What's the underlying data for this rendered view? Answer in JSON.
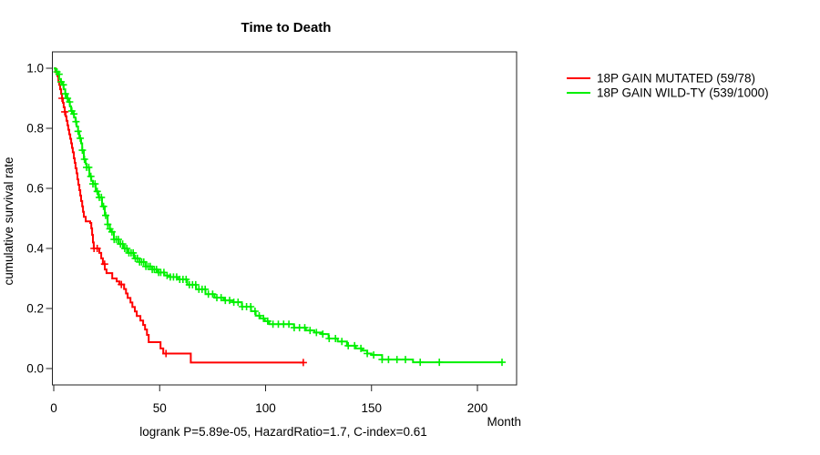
{
  "chart_data": {
    "type": "line",
    "subtype": "kaplan-meier-step",
    "title": "Time to Death",
    "xlabel": "Month",
    "ylabel": "cumulative survival rate",
    "annotation": "logrank P=5.89e-05, HazardRatio=1.7, C-index=0.61",
    "xlim": [
      0,
      220
    ],
    "ylim": [
      0,
      1
    ],
    "xticks": [
      0,
      50,
      100,
      150,
      200
    ],
    "ytick_labels": [
      "0.0",
      "0.2",
      "0.4",
      "0.6",
      "0.8",
      "1.0"
    ],
    "grid": false,
    "legend_position": "right-outside",
    "frame_color": "#222222",
    "series": [
      {
        "name": "18P GAIN MUTATED (59/78)",
        "color": "#ff0000",
        "points": [
          [
            0,
            1.0
          ],
          [
            0.9,
            0.987
          ],
          [
            1.7,
            0.974
          ],
          [
            2.2,
            0.955
          ],
          [
            2.6,
            0.945
          ],
          [
            3,
            0.93
          ],
          [
            3.5,
            0.915
          ],
          [
            3.9,
            0.9
          ],
          [
            4.3,
            0.885
          ],
          [
            4.7,
            0.87
          ],
          [
            5.2,
            0.855
          ],
          [
            5.6,
            0.84
          ],
          [
            6,
            0.825
          ],
          [
            6.5,
            0.81
          ],
          [
            6.9,
            0.795
          ],
          [
            7.3,
            0.78
          ],
          [
            7.8,
            0.765
          ],
          [
            8.2,
            0.75
          ],
          [
            8.6,
            0.735
          ],
          [
            9,
            0.72
          ],
          [
            9.5,
            0.7
          ],
          [
            9.9,
            0.685
          ],
          [
            10.3,
            0.667
          ],
          [
            10.8,
            0.65
          ],
          [
            11.2,
            0.63
          ],
          [
            11.6,
            0.612
          ],
          [
            12.1,
            0.594
          ],
          [
            12.5,
            0.576
          ],
          [
            12.9,
            0.558
          ],
          [
            13.4,
            0.54
          ],
          [
            13.8,
            0.522
          ],
          [
            14.2,
            0.505
          ],
          [
            15.1,
            0.49
          ],
          [
            17.2,
            0.485
          ],
          [
            17.7,
            0.467
          ],
          [
            18.1,
            0.445
          ],
          [
            18.5,
            0.42
          ],
          [
            18.9,
            0.4
          ],
          [
            21.5,
            0.385
          ],
          [
            22.4,
            0.367
          ],
          [
            23.2,
            0.348
          ],
          [
            24.1,
            0.33
          ],
          [
            24.9,
            0.318
          ],
          [
            27.6,
            0.3
          ],
          [
            29.7,
            0.29
          ],
          [
            31,
            0.28
          ],
          [
            33.2,
            0.265
          ],
          [
            34.1,
            0.25
          ],
          [
            34.9,
            0.235
          ],
          [
            36.2,
            0.22
          ],
          [
            37.1,
            0.205
          ],
          [
            38.3,
            0.19
          ],
          [
            39.2,
            0.175
          ],
          [
            40.9,
            0.16
          ],
          [
            42.2,
            0.145
          ],
          [
            43.1,
            0.13
          ],
          [
            44,
            0.112
          ],
          [
            44.8,
            0.088
          ],
          [
            50.4,
            0.067
          ],
          [
            51.7,
            0.05
          ],
          [
            64.7,
            0.02
          ],
          [
            117.8,
            0.02
          ]
        ],
        "censor_months": [
          3.9,
          5.2,
          19,
          20.5,
          24,
          31.9,
          53,
          117.8
        ]
      },
      {
        "name": "18P GAIN WILD-TY (539/1000)",
        "color": "#00f000",
        "points": [
          [
            0,
            1.0
          ],
          [
            0.7,
            0.995
          ],
          [
            1.4,
            0.988
          ],
          [
            2,
            0.98
          ],
          [
            2.6,
            0.964
          ],
          [
            3.3,
            0.955
          ],
          [
            4,
            0.945
          ],
          [
            4.7,
            0.93
          ],
          [
            5.4,
            0.915
          ],
          [
            6,
            0.9
          ],
          [
            6.9,
            0.888
          ],
          [
            7.6,
            0.873
          ],
          [
            8.2,
            0.858
          ],
          [
            9,
            0.848
          ],
          [
            9.6,
            0.836
          ],
          [
            10.3,
            0.822
          ],
          [
            10.8,
            0.806
          ],
          [
            11.5,
            0.79
          ],
          [
            12.1,
            0.767
          ],
          [
            12.9,
            0.75
          ],
          [
            13.4,
            0.727
          ],
          [
            14.2,
            0.697
          ],
          [
            15,
            0.682
          ],
          [
            15.5,
            0.67
          ],
          [
            16.8,
            0.64
          ],
          [
            17.7,
            0.625
          ],
          [
            18.5,
            0.615
          ],
          [
            19.8,
            0.59
          ],
          [
            21.1,
            0.57
          ],
          [
            22.8,
            0.54
          ],
          [
            24.1,
            0.51
          ],
          [
            25.4,
            0.48
          ],
          [
            26.5,
            0.465
          ],
          [
            27.2,
            0.455
          ],
          [
            28.4,
            0.43
          ],
          [
            30.6,
            0.415
          ],
          [
            32.8,
            0.4
          ],
          [
            34.9,
            0.385
          ],
          [
            37.9,
            0.367
          ],
          [
            40.5,
            0.355
          ],
          [
            43.5,
            0.34
          ],
          [
            46.5,
            0.33
          ],
          [
            49,
            0.32
          ],
          [
            52.2,
            0.31
          ],
          [
            55,
            0.305
          ],
          [
            58.6,
            0.297
          ],
          [
            63,
            0.279
          ],
          [
            67.2,
            0.264
          ],
          [
            71.6,
            0.248
          ],
          [
            75.9,
            0.236
          ],
          [
            80.2,
            0.227
          ],
          [
            84.5,
            0.221
          ],
          [
            88.8,
            0.206
          ],
          [
            93.1,
            0.191
          ],
          [
            95.3,
            0.176
          ],
          [
            97.4,
            0.167
          ],
          [
            99.6,
            0.158
          ],
          [
            101.7,
            0.148
          ],
          [
            113.4,
            0.136
          ],
          [
            119,
            0.127
          ],
          [
            123,
            0.12
          ],
          [
            126.3,
            0.115
          ],
          [
            129.7,
            0.1
          ],
          [
            134,
            0.09
          ],
          [
            138.4,
            0.076
          ],
          [
            142.6,
            0.067
          ],
          [
            145.7,
            0.06
          ],
          [
            148,
            0.05
          ],
          [
            150,
            0.045
          ],
          [
            155,
            0.03
          ],
          [
            169.6,
            0.021
          ],
          [
            211.6,
            0.021
          ]
        ],
        "censor_months": [
          1.5,
          2.5,
          3.5,
          4.5,
          5.5,
          6.5,
          7.5,
          8.5,
          9.5,
          10.5,
          11.5,
          12.5,
          13.5,
          14.5,
          15.5,
          16.5,
          17.5,
          18.5,
          19.5,
          20.5,
          21.5,
          22.5,
          23.5,
          24.5,
          25.5,
          26.5,
          27.5,
          28.5,
          29.5,
          30.5,
          31.5,
          32.5,
          33.5,
          34.5,
          35.5,
          36.5,
          37.5,
          38.5,
          39.5,
          40.5,
          41.5,
          42.5,
          43.5,
          44.5,
          45.5,
          46.5,
          47.5,
          48.5,
          49.5,
          50.5,
          52,
          53.5,
          55,
          56.5,
          58,
          59.5,
          61,
          62.5,
          64,
          65.5,
          67,
          68.5,
          70,
          71.5,
          73,
          75,
          77,
          79,
          81,
          83,
          85,
          87,
          89,
          91,
          93,
          95,
          97,
          99,
          101,
          103.5,
          106,
          108.5,
          111,
          113.5,
          116,
          118.5,
          121,
          124,
          127,
          130,
          133,
          136,
          139,
          142,
          145,
          148,
          151,
          155,
          158,
          162,
          166,
          173,
          182,
          211.6
        ]
      }
    ]
  }
}
